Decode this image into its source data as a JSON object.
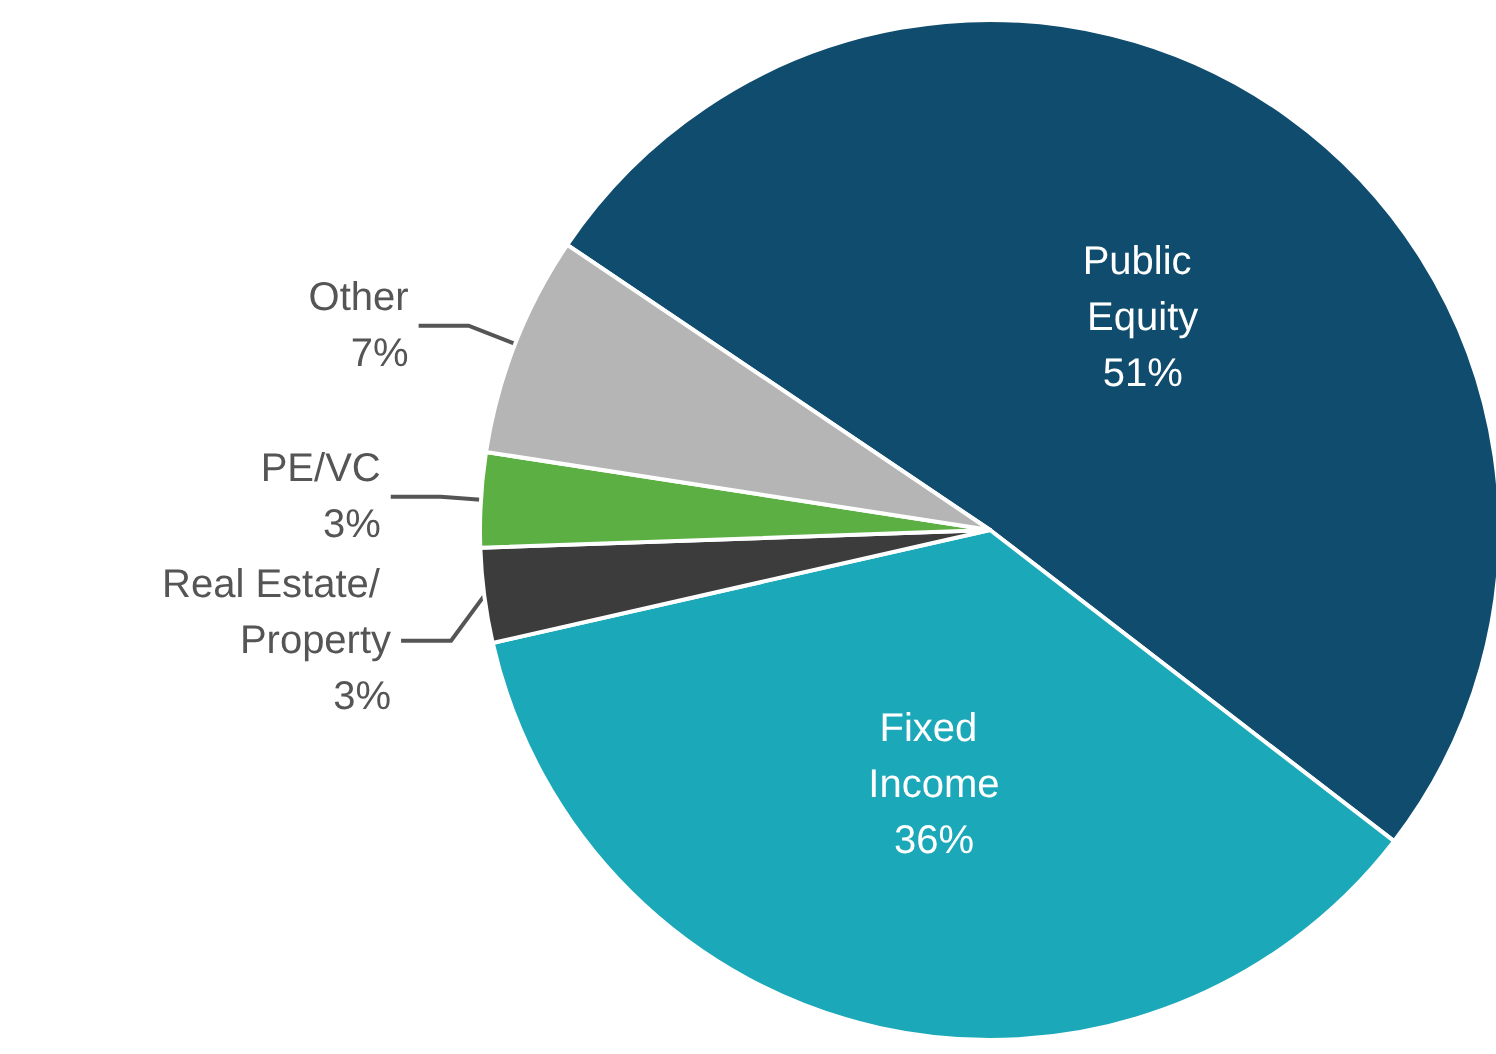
{
  "chart_data": {
    "type": "pie",
    "categories": [
      "Public Equity",
      "Fixed Income",
      "Real Estate/ Property",
      "PE/VC",
      "Other"
    ],
    "values": [
      51,
      36,
      3,
      3,
      7
    ],
    "value_labels": [
      "51%",
      "36%",
      "3%",
      "3%",
      "7%"
    ],
    "colors": [
      "#0f4c6e",
      "#1ba8b9",
      "#3c3c3c",
      "#5cb043",
      "#b5b5b5"
    ]
  }
}
